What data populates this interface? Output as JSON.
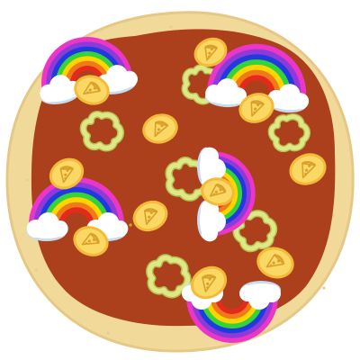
{
  "scene": {
    "item": "pizza",
    "crust_shape": "round",
    "colors": {
      "background": "#ffffff",
      "crust": "#f1d99a",
      "crust_edge": "#e6c886",
      "crust_speckle": "#e7cf92",
      "sauce": "#ac3f1c",
      "coin_fill": "#fbd764",
      "coin_ring": "#f2bc3a",
      "coin_mark": "#d9a12c",
      "pepper": "#dfe889",
      "pepper_edge": "#b5c04a",
      "cloud": "#ffffff",
      "cloud_shade": "#c9dcef",
      "rainbow": [
        "#ec36c8",
        "#8d3ad8",
        "#1f3be0",
        "#35d33a",
        "#ffd400",
        "#f07a1a",
        "#e42a1a"
      ]
    }
  },
  "toppings": {
    "rainbow_count": 5,
    "gold_coin_count": 13,
    "pepper_ring_count": 6
  }
}
